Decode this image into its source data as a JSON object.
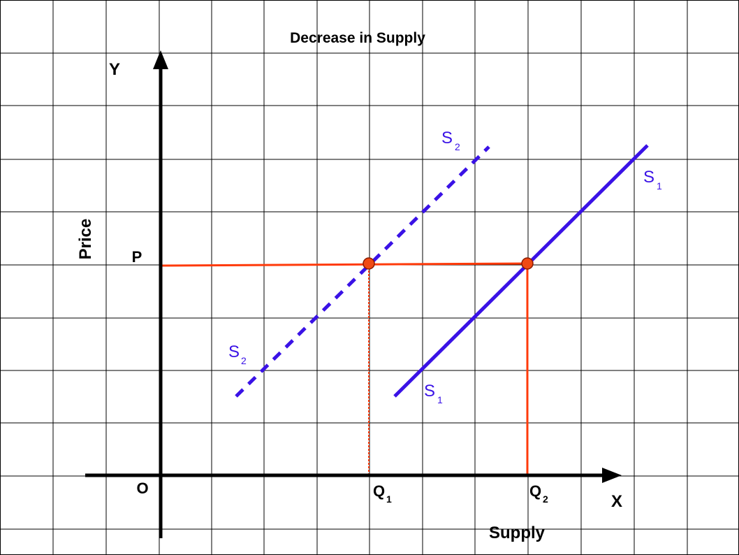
{
  "title": "Decrease in Supply",
  "axes": {
    "y_axis_letter": "Y",
    "x_axis_letter": "X",
    "origin": "O",
    "y_label": "Price",
    "x_label": "Supply"
  },
  "price_label": "P",
  "quantity_labels": {
    "q1_main": "Q",
    "q1_sub": "1",
    "q2_main": "Q",
    "q2_sub": "2"
  },
  "curves": {
    "s1_main": "S",
    "s1_sub": "1",
    "s2_main": "S",
    "s2_sub": "2"
  },
  "colors": {
    "axis": "#000000",
    "grid": "#000000",
    "supply_curve": "#3a12e6",
    "guide_lines": "#ff3a0a",
    "point_fill": "#f04a14"
  }
}
